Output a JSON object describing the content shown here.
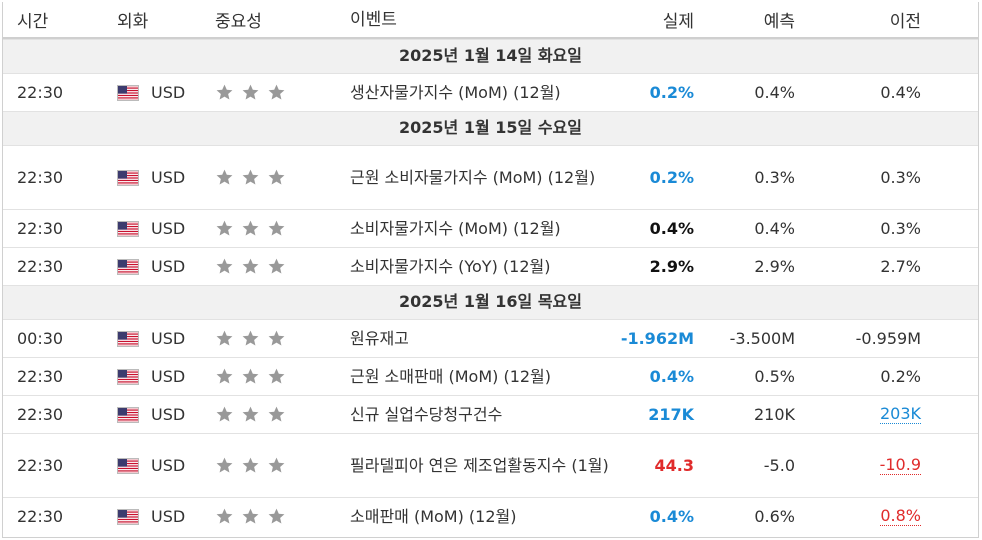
{
  "headers": {
    "time": "시간",
    "currency": "외화",
    "importance": "중요성",
    "event": "이벤트",
    "actual": "실제",
    "forecast": "예측",
    "previous": "이전"
  },
  "colors": {
    "positive": "#1a8ad6",
    "negative": "#e02b2b",
    "neutral": "#111111",
    "star": "#999999"
  },
  "days": [
    {
      "label": "2025년 1월 14일 화요일",
      "events": [
        {
          "time": "22:30",
          "currency": "USD",
          "flag": "us-flag-icon",
          "stars": 3,
          "event": "생산자물가지수 (MoM) (12월)",
          "actual": "0.2%",
          "actual_status": "positive",
          "forecast": "0.4%",
          "previous": "0.4%",
          "previous_status": "normal"
        }
      ]
    },
    {
      "label": "2025년 1월 15일 수요일",
      "events": [
        {
          "time": "22:30",
          "currency": "USD",
          "flag": "us-flag-icon",
          "stars": 3,
          "event": "근원 소비자물가지수 (MoM) (12월)",
          "actual": "0.2%",
          "actual_status": "positive",
          "forecast": "0.3%",
          "previous": "0.3%",
          "previous_status": "normal"
        },
        {
          "time": "22:30",
          "currency": "USD",
          "flag": "us-flag-icon",
          "stars": 3,
          "event": "소비자물가지수 (MoM) (12월)",
          "actual": "0.4%",
          "actual_status": "neutral",
          "forecast": "0.4%",
          "previous": "0.3%",
          "previous_status": "normal"
        },
        {
          "time": "22:30",
          "currency": "USD",
          "flag": "us-flag-icon",
          "stars": 3,
          "event": "소비자물가지수 (YoY) (12월)",
          "actual": "2.9%",
          "actual_status": "neutral",
          "forecast": "2.9%",
          "previous": "2.7%",
          "previous_status": "normal"
        }
      ]
    },
    {
      "label": "2025년 1월 16일 목요일",
      "events": [
        {
          "time": "00:30",
          "currency": "USD",
          "flag": "us-flag-icon",
          "stars": 3,
          "event": "원유재고",
          "actual": "-1.962M",
          "actual_status": "positive",
          "forecast": "-3.500M",
          "previous": "-0.959M",
          "previous_status": "normal"
        },
        {
          "time": "22:30",
          "currency": "USD",
          "flag": "us-flag-icon",
          "stars": 3,
          "event": "근원 소매판매 (MoM) (12월)",
          "actual": "0.4%",
          "actual_status": "positive",
          "forecast": "0.5%",
          "previous": "0.2%",
          "previous_status": "normal"
        },
        {
          "time": "22:30",
          "currency": "USD",
          "flag": "us-flag-icon",
          "stars": 3,
          "event": "신규 실업수당청구건수",
          "actual": "217K",
          "actual_status": "positive",
          "forecast": "210K",
          "previous": "203K",
          "previous_status": "revised-up"
        },
        {
          "time": "22:30",
          "currency": "USD",
          "flag": "us-flag-icon",
          "stars": 3,
          "event": "필라델피아 연은 제조업활동지수 (1월)",
          "actual": "44.3",
          "actual_status": "negative",
          "forecast": "-5.0",
          "previous": "-10.9",
          "previous_status": "revised-down"
        },
        {
          "time": "22:30",
          "currency": "USD",
          "flag": "us-flag-icon",
          "stars": 3,
          "event": "소매판매 (MoM) (12월)",
          "actual": "0.4%",
          "actual_status": "positive",
          "forecast": "0.6%",
          "previous": "0.8%",
          "previous_status": "revised-down"
        }
      ]
    }
  ]
}
